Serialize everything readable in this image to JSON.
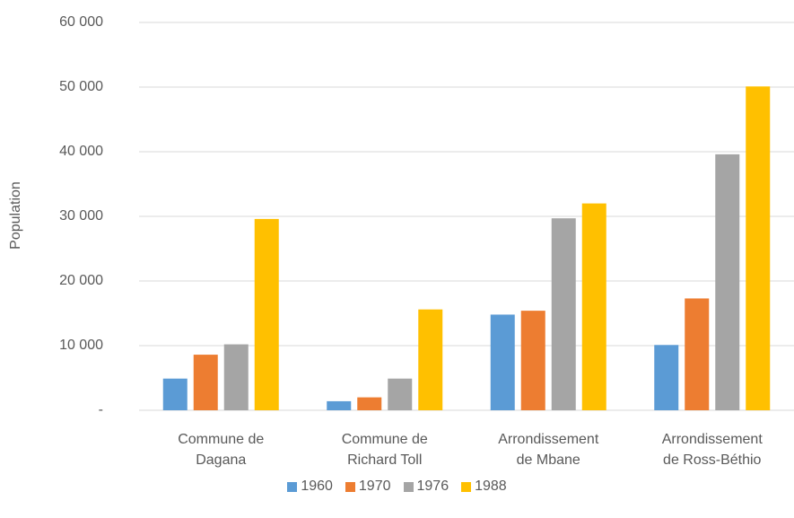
{
  "chart_data": {
    "type": "bar",
    "y_label": "Population",
    "categories": [
      "Commune de Dagana",
      "Commune de Richard Toll",
      "Arrondissement de Mbane",
      "Arrondissement de Ross-Béthio"
    ],
    "series": [
      {
        "name": "1960",
        "color": "#5b9bd5",
        "values": [
          4900,
          1400,
          14800,
          10100
        ]
      },
      {
        "name": "1970",
        "color": "#ed7d31",
        "values": [
          8600,
          2000,
          15400,
          17300
        ]
      },
      {
        "name": "1976",
        "color": "#a5a5a5",
        "values": [
          10200,
          4900,
          29700,
          39600
        ]
      },
      {
        "name": "1988",
        "color": "#ffc000",
        "values": [
          29600,
          15600,
          32000,
          50100
        ]
      }
    ],
    "ylim": [
      0,
      60000
    ],
    "yticks": [
      {
        "value": 0,
        "label": "-"
      },
      {
        "value": 10000,
        "label": "10 000"
      },
      {
        "value": 20000,
        "label": "20 000"
      },
      {
        "value": 30000,
        "label": "30 000"
      },
      {
        "value": 40000,
        "label": "40 000"
      },
      {
        "value": 50000,
        "label": "50 000"
      },
      {
        "value": 60000,
        "label": "60 000"
      }
    ],
    "grid": true,
    "legend": "bottom"
  }
}
